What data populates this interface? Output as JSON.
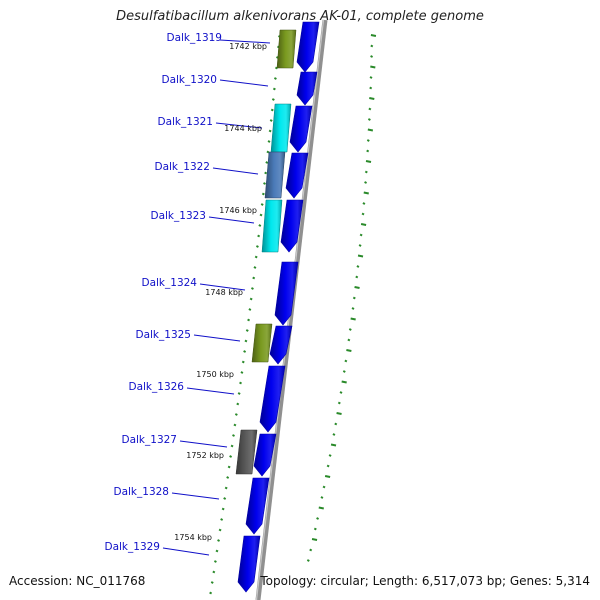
{
  "title": "Desulfatibacillum alkenivorans AK-01, complete genome",
  "accession": "Accession: NC_011768",
  "topology": "Topology: circular; Length: 6,517,073 bp; Genes: 5,314",
  "colors": {
    "gene_label": "#1010c8",
    "cds": "#0000ee",
    "olive": "#7a9a20",
    "cyan": "#00e8ee",
    "steel": "#4a7ab8",
    "dark_gray": "#5a5a5a",
    "backbone": "#909090",
    "tick": "#2a8a2a"
  },
  "genes": [
    {
      "label": "Dalk_1319",
      "strand": "+"
    },
    {
      "label": "Dalk_1320",
      "strand": "+"
    },
    {
      "label": "Dalk_1321",
      "strand": "+"
    },
    {
      "label": "Dalk_1322",
      "strand": "+"
    },
    {
      "label": "Dalk_1323",
      "strand": "+"
    },
    {
      "label": "Dalk_1324",
      "strand": "+"
    },
    {
      "label": "Dalk_1325",
      "strand": "+"
    },
    {
      "label": "Dalk_1326",
      "strand": "+"
    },
    {
      "label": "Dalk_1327",
      "strand": "+"
    },
    {
      "label": "Dalk_1328",
      "strand": "+"
    },
    {
      "label": "Dalk_1329",
      "strand": "+"
    }
  ],
  "features": [
    {
      "color": "olive",
      "gene": "Dalk_1319"
    },
    {
      "color": "cyan",
      "gene": "Dalk_1321"
    },
    {
      "color": "steel",
      "gene": "Dalk_1322"
    },
    {
      "color": "cyan",
      "gene": "Dalk_1323"
    },
    {
      "color": "olive",
      "gene": "Dalk_1325"
    },
    {
      "color": "dark_gray",
      "gene": "Dalk_1327"
    }
  ],
  "position_labels": [
    "1742 kbp",
    "1744 kbp",
    "1746 kbp",
    "1748 kbp",
    "1750 kbp",
    "1752 kbp",
    "1754 kbp"
  ]
}
